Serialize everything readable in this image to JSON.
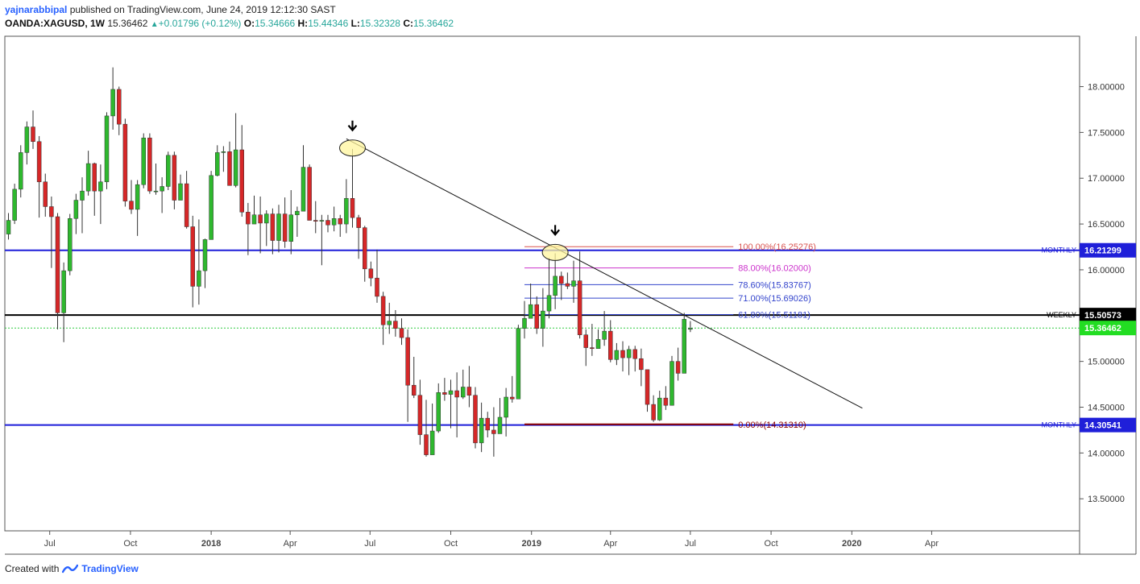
{
  "header": {
    "author": "yajnarabbipal",
    "published_text": "published on TradingView.com, June 24, 2019 12:12:30 SAST",
    "symbol": "OANDA:XAGUSD, 1W",
    "price": "15.36462",
    "change": "+0.01796 (+0.12%)",
    "o_label": "O:",
    "o_value": "15.34666",
    "h_label": "H:",
    "h_value": "15.44346",
    "l_label": "L:",
    "l_value": "15.32328",
    "c_label": "C:",
    "c_value": "15.36462"
  },
  "footer": {
    "created_with": "Created with",
    "brand": "TradingView"
  },
  "colors": {
    "up": "#26a69a",
    "candle_up": "#2eb82e",
    "candle_down": "#d62728",
    "monthly": "#1f1fd9",
    "weekly": "#000000",
    "current": "#2ecc40",
    "fib_100": "#d9534f",
    "fib_88": "#cc33cc",
    "fib_blue": "#3344cc",
    "fib_0": "#8b0000"
  },
  "chart_data": {
    "type": "candlestick",
    "symbol": "OANDA:XAGUSD",
    "timeframe": "1W",
    "ylim": [
      13.15,
      18.55
    ],
    "y_ticks": [
      "18.00000",
      "17.50000",
      "17.00000",
      "16.50000",
      "16.00000",
      "15.00000",
      "14.50000",
      "14.00000",
      "13.50000"
    ],
    "y_tick_values": [
      18.0,
      17.5,
      17.0,
      16.5,
      16.0,
      15.0,
      14.5,
      14.0,
      13.5
    ],
    "x_ticks": [
      {
        "label": "Jul",
        "date": "2017-07-01"
      },
      {
        "label": "Oct",
        "date": "2017-10-01"
      },
      {
        "label": "2018",
        "date": "2018-01-01",
        "bold": true
      },
      {
        "label": "Apr",
        "date": "2018-04-01"
      },
      {
        "label": "Jul",
        "date": "2018-07-01"
      },
      {
        "label": "Oct",
        "date": "2018-10-01"
      },
      {
        "label": "2019",
        "date": "2019-01-01",
        "bold": true
      },
      {
        "label": "Apr",
        "date": "2019-04-01"
      },
      {
        "label": "Jul",
        "date": "2019-07-01"
      },
      {
        "label": "Oct",
        "date": "2019-10-01"
      },
      {
        "label": "2020",
        "date": "2020-01-01",
        "bold": true
      },
      {
        "label": "Apr",
        "date": "2020-04-01"
      }
    ],
    "first_candle_date": "2017-05-15",
    "candles": [
      [
        16.39,
        16.54,
        16.62,
        16.33
      ],
      [
        16.54,
        16.88,
        16.94,
        16.5
      ],
      [
        16.88,
        17.28,
        17.36,
        16.79
      ],
      [
        17.28,
        17.56,
        17.62,
        17.15
      ],
      [
        17.56,
        17.4,
        17.74,
        17.32
      ],
      [
        17.4,
        16.96,
        17.46,
        16.57
      ],
      [
        16.96,
        16.69,
        17.05,
        16.58
      ],
      [
        16.69,
        16.58,
        16.8,
        16.02
      ],
      [
        16.58,
        15.53,
        16.62,
        15.35
      ],
      [
        15.53,
        15.99,
        16.08,
        15.21
      ],
      [
        15.99,
        16.56,
        16.61,
        15.94
      ],
      [
        16.56,
        16.76,
        16.83,
        16.39
      ],
      [
        16.76,
        16.86,
        17.01,
        16.4
      ],
      [
        16.86,
        17.16,
        17.3,
        16.81
      ],
      [
        17.16,
        16.86,
        17.17,
        16.59
      ],
      [
        16.86,
        16.96,
        17.15,
        16.5
      ],
      [
        16.96,
        17.68,
        17.72,
        16.88
      ],
      [
        17.68,
        17.97,
        18.21,
        17.53
      ],
      [
        17.97,
        17.59,
        18.0,
        17.47
      ],
      [
        17.59,
        16.75,
        17.65,
        16.69
      ],
      [
        16.75,
        16.66,
        16.98,
        16.61
      ],
      [
        16.66,
        16.93,
        16.98,
        16.37
      ],
      [
        16.93,
        17.44,
        17.49,
        16.89
      ],
      [
        17.44,
        16.86,
        17.49,
        16.83
      ],
      [
        16.86,
        16.86,
        17.16,
        16.82
      ],
      [
        16.86,
        16.91,
        17.01,
        16.62
      ],
      [
        16.91,
        17.25,
        17.29,
        16.87
      ],
      [
        17.25,
        16.76,
        17.29,
        16.66
      ],
      [
        16.76,
        16.94,
        17.04,
        16.93
      ],
      [
        16.94,
        16.47,
        17.08,
        16.45
      ],
      [
        16.47,
        15.82,
        16.59,
        15.59
      ],
      [
        15.82,
        15.99,
        16.55,
        15.62
      ],
      [
        15.99,
        16.33,
        16.34,
        15.8
      ],
      [
        16.33,
        17.03,
        17.08,
        16.38
      ],
      [
        17.03,
        17.28,
        17.36,
        17.02
      ],
      [
        17.28,
        17.29,
        17.35,
        17.07
      ],
      [
        17.29,
        16.92,
        17.4,
        16.97
      ],
      [
        16.92,
        17.31,
        17.71,
        16.9
      ],
      [
        17.31,
        16.63,
        17.58,
        16.58
      ],
      [
        16.63,
        16.5,
        16.73,
        16.16
      ],
      [
        16.5,
        16.6,
        16.81,
        16.5
      ],
      [
        16.6,
        16.51,
        16.8,
        16.18
      ],
      [
        16.51,
        16.61,
        16.65,
        16.26
      ],
      [
        16.61,
        16.32,
        16.67,
        16.17
      ],
      [
        16.32,
        16.61,
        16.71,
        16.19
      ],
      [
        16.61,
        16.31,
        16.79,
        16.24
      ],
      [
        16.31,
        16.6,
        16.87,
        16.17
      ],
      [
        16.6,
        16.64,
        16.69,
        16.36
      ],
      [
        16.64,
        17.12,
        17.36,
        16.67
      ],
      [
        17.12,
        16.54,
        17.15,
        16.58
      ],
      [
        16.54,
        16.53,
        16.75,
        16.4
      ],
      [
        16.53,
        16.54,
        16.6,
        16.05
      ],
      [
        16.54,
        16.49,
        16.6,
        16.41
      ],
      [
        16.49,
        16.56,
        16.69,
        16.42
      ],
      [
        16.56,
        16.5,
        16.6,
        16.36
      ],
      [
        16.5,
        16.78,
        16.99,
        16.4
      ],
      [
        16.78,
        16.57,
        17.32,
        16.46
      ],
      [
        16.57,
        16.46,
        16.6,
        16.12
      ],
      [
        16.46,
        16.01,
        16.48,
        15.87
      ],
      [
        16.01,
        15.91,
        16.09,
        15.82
      ],
      [
        15.91,
        15.71,
        16.22,
        15.64
      ],
      [
        15.71,
        15.4,
        15.76,
        15.18
      ],
      [
        15.4,
        15.44,
        15.64,
        15.3
      ],
      [
        15.44,
        15.36,
        15.56,
        15.27
      ],
      [
        15.36,
        15.26,
        15.47,
        15.18
      ],
      [
        15.26,
        14.74,
        15.35,
        14.34
      ],
      [
        14.74,
        14.63,
        15.05,
        14.6
      ],
      [
        14.63,
        14.2,
        14.8,
        14.09
      ],
      [
        14.2,
        13.98,
        14.58,
        13.96
      ],
      [
        13.98,
        14.24,
        14.54,
        14.07
      ],
      [
        14.24,
        14.66,
        14.76,
        14.22
      ],
      [
        14.66,
        14.64,
        14.82,
        14.57
      ],
      [
        14.64,
        14.68,
        14.8,
        14.27
      ],
      [
        14.68,
        14.61,
        14.88,
        14.17
      ],
      [
        14.61,
        14.72,
        14.91,
        14.59
      ],
      [
        14.72,
        14.63,
        14.95,
        14.5
      ],
      [
        14.63,
        14.11,
        14.72,
        14.05
      ],
      [
        14.11,
        14.38,
        14.55,
        14.01
      ],
      [
        14.38,
        14.25,
        14.45,
        14.17
      ],
      [
        14.25,
        14.21,
        14.5,
        13.96
      ],
      [
        14.21,
        14.39,
        14.6,
        14.21
      ],
      [
        14.39,
        14.61,
        14.71,
        14.18
      ],
      [
        14.61,
        14.59,
        14.84,
        14.55
      ],
      [
        14.59,
        15.36,
        15.4,
        14.63
      ],
      [
        15.36,
        15.47,
        15.66,
        15.25
      ],
      [
        15.47,
        15.62,
        15.85,
        15.5
      ],
      [
        15.62,
        15.36,
        15.71,
        15.3
      ],
      [
        15.36,
        15.55,
        15.8,
        15.16
      ],
      [
        15.55,
        15.72,
        16.13,
        15.47
      ],
      [
        15.72,
        15.93,
        16.18,
        15.57
      ],
      [
        15.93,
        15.85,
        15.98,
        15.67
      ],
      [
        15.85,
        15.82,
        15.97,
        15.79
      ],
      [
        15.82,
        15.88,
        16.1,
        15.64
      ],
      [
        15.88,
        15.29,
        16.2,
        15.25
      ],
      [
        15.29,
        15.15,
        15.35,
        14.95
      ],
      [
        15.15,
        15.14,
        15.41,
        15.06
      ],
      [
        15.14,
        15.24,
        15.35,
        15.21
      ],
      [
        15.24,
        15.33,
        15.55,
        15.17
      ],
      [
        15.33,
        15.02,
        15.45,
        14.99
      ],
      [
        15.02,
        15.12,
        15.2,
        14.96
      ],
      [
        15.12,
        15.04,
        15.22,
        14.89
      ],
      [
        15.04,
        15.13,
        15.17,
        14.85
      ],
      [
        15.13,
        15.03,
        15.17,
        14.89
      ],
      [
        15.03,
        14.91,
        15.14,
        14.73
      ],
      [
        14.91,
        14.53,
        14.79,
        14.45
      ],
      [
        14.53,
        14.36,
        14.63,
        14.34
      ],
      [
        14.36,
        14.6,
        14.68,
        14.35
      ],
      [
        14.6,
        14.52,
        14.73,
        14.47
      ],
      [
        14.52,
        15.0,
        15.06,
        14.53
      ],
      [
        15.0,
        14.87,
        15.15,
        14.79
      ],
      [
        14.87,
        15.46,
        15.53,
        14.88
      ],
      [
        15.35,
        15.36,
        15.44,
        15.32
      ]
    ],
    "horizontal_levels": [
      {
        "value": 16.21299,
        "kind": "monthly",
        "text": "MONTHLY",
        "price": "16.21299"
      },
      {
        "value": 15.50573,
        "kind": "weekly",
        "text": "WEEKLY",
        "price": "15.50573"
      },
      {
        "value": 15.36462,
        "kind": "current",
        "price": "15.36462"
      },
      {
        "value": 14.30541,
        "kind": "monthly",
        "text": "MONTHLY",
        "price": "14.30541"
      }
    ],
    "fibonacci": [
      {
        "label": "100.00%(16.25276)",
        "value": 16.25276,
        "color_key": "fib_100"
      },
      {
        "label": "88.00%(16.02000)",
        "value": 16.02,
        "color_key": "fib_88"
      },
      {
        "label": "78.60%(15.83767)",
        "value": 15.83767,
        "color_key": "fib_blue"
      },
      {
        "label": "71.00%(15.69026)",
        "value": 15.69026,
        "color_key": "fib_blue"
      },
      {
        "label": "61.80%(15.51181)",
        "value": 15.51181,
        "color_key": "fib_blue"
      },
      {
        "label": "0.00%(14.31310)",
        "value": 14.3131,
        "color_key": "fib_0"
      }
    ],
    "fib_start_date": "2018-12-24",
    "fib_end_date": "2019-08-19",
    "trendline": {
      "from": {
        "date": "2018-06-04",
        "value": 17.43
      },
      "to": {
        "date": "2020-01-13",
        "value": 14.49
      }
    },
    "highlights": [
      {
        "date": "2018-06-11",
        "value": 17.33,
        "arrow": true
      },
      {
        "date": "2019-01-28",
        "value": 16.19,
        "arrow": true
      }
    ]
  }
}
